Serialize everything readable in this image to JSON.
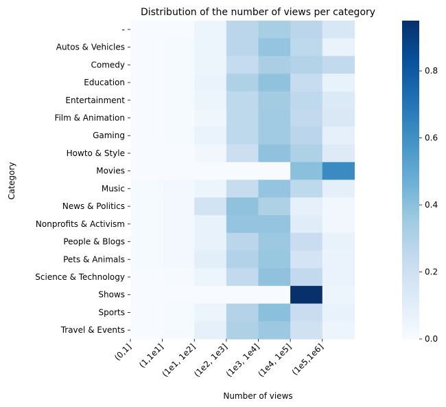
{
  "chart_data": {
    "type": "heatmap",
    "title": "Distribution of the number of views per category",
    "xlabel": "Number of views",
    "ylabel": "Category",
    "x_tick_labels": [
      "(0,1]",
      "(1,1e1]",
      "(1e1, 1e2]",
      "(1e2, 1e3]",
      "(1e3, 1e4]",
      "(1e4, 1e5]",
      "(1e5,1e6]"
    ],
    "categories": [
      "-",
      "Autos & Vehicles",
      "Comedy",
      "Education",
      "Entertainment",
      "Film & Animation",
      "Gaming",
      "Howto & Style",
      "Movies",
      "Music",
      "News & Politics",
      "Nonprofits & Activism",
      "People & Blogs",
      "Pets & Animals",
      "Science & Technology",
      "Shows",
      "Sports",
      "Travel & Events"
    ],
    "values": [
      [
        0.0,
        0.0,
        0.05,
        0.27,
        0.33,
        0.27,
        0.15
      ],
      [
        0.0,
        0.01,
        0.05,
        0.27,
        0.38,
        0.26,
        0.06
      ],
      [
        0.0,
        0.01,
        0.05,
        0.24,
        0.32,
        0.29,
        0.25
      ],
      [
        0.0,
        0.01,
        0.06,
        0.31,
        0.39,
        0.23,
        0.07
      ],
      [
        0.0,
        0.01,
        0.05,
        0.26,
        0.34,
        0.26,
        0.13
      ],
      [
        0.0,
        0.01,
        0.04,
        0.26,
        0.35,
        0.25,
        0.14
      ],
      [
        0.0,
        0.01,
        0.06,
        0.26,
        0.35,
        0.27,
        0.08
      ],
      [
        0.0,
        0.0,
        0.03,
        0.21,
        0.39,
        0.31,
        0.12
      ],
      [
        0.0,
        0.0,
        0.0,
        0.0,
        0.0,
        0.4,
        0.62
      ],
      [
        0.01,
        0.02,
        0.05,
        0.23,
        0.38,
        0.26,
        0.09
      ],
      [
        0.01,
        0.02,
        0.18,
        0.39,
        0.31,
        0.08,
        0.03
      ],
      [
        0.01,
        0.02,
        0.07,
        0.38,
        0.38,
        0.11,
        0.03
      ],
      [
        0.01,
        0.02,
        0.07,
        0.27,
        0.36,
        0.22,
        0.07
      ],
      [
        0.01,
        0.02,
        0.1,
        0.3,
        0.37,
        0.17,
        0.06
      ],
      [
        0.0,
        0.01,
        0.05,
        0.25,
        0.39,
        0.25,
        0.06
      ],
      [
        0.0,
        0.0,
        0.0,
        0.0,
        0.0,
        0.95,
        0.05
      ],
      [
        0.0,
        0.01,
        0.05,
        0.29,
        0.4,
        0.22,
        0.07
      ],
      [
        0.0,
        0.01,
        0.08,
        0.31,
        0.36,
        0.19,
        0.05
      ]
    ],
    "colorbar": {
      "min": 0.0,
      "max": 0.95,
      "tick_values": [
        0.0,
        0.2,
        0.4,
        0.6,
        0.8
      ],
      "tick_labels": [
        "0.0",
        "0.2",
        "0.4",
        "0.6",
        "0.8"
      ],
      "colormap": "Blues"
    },
    "grid": false,
    "legend": "colorbar-right"
  }
}
